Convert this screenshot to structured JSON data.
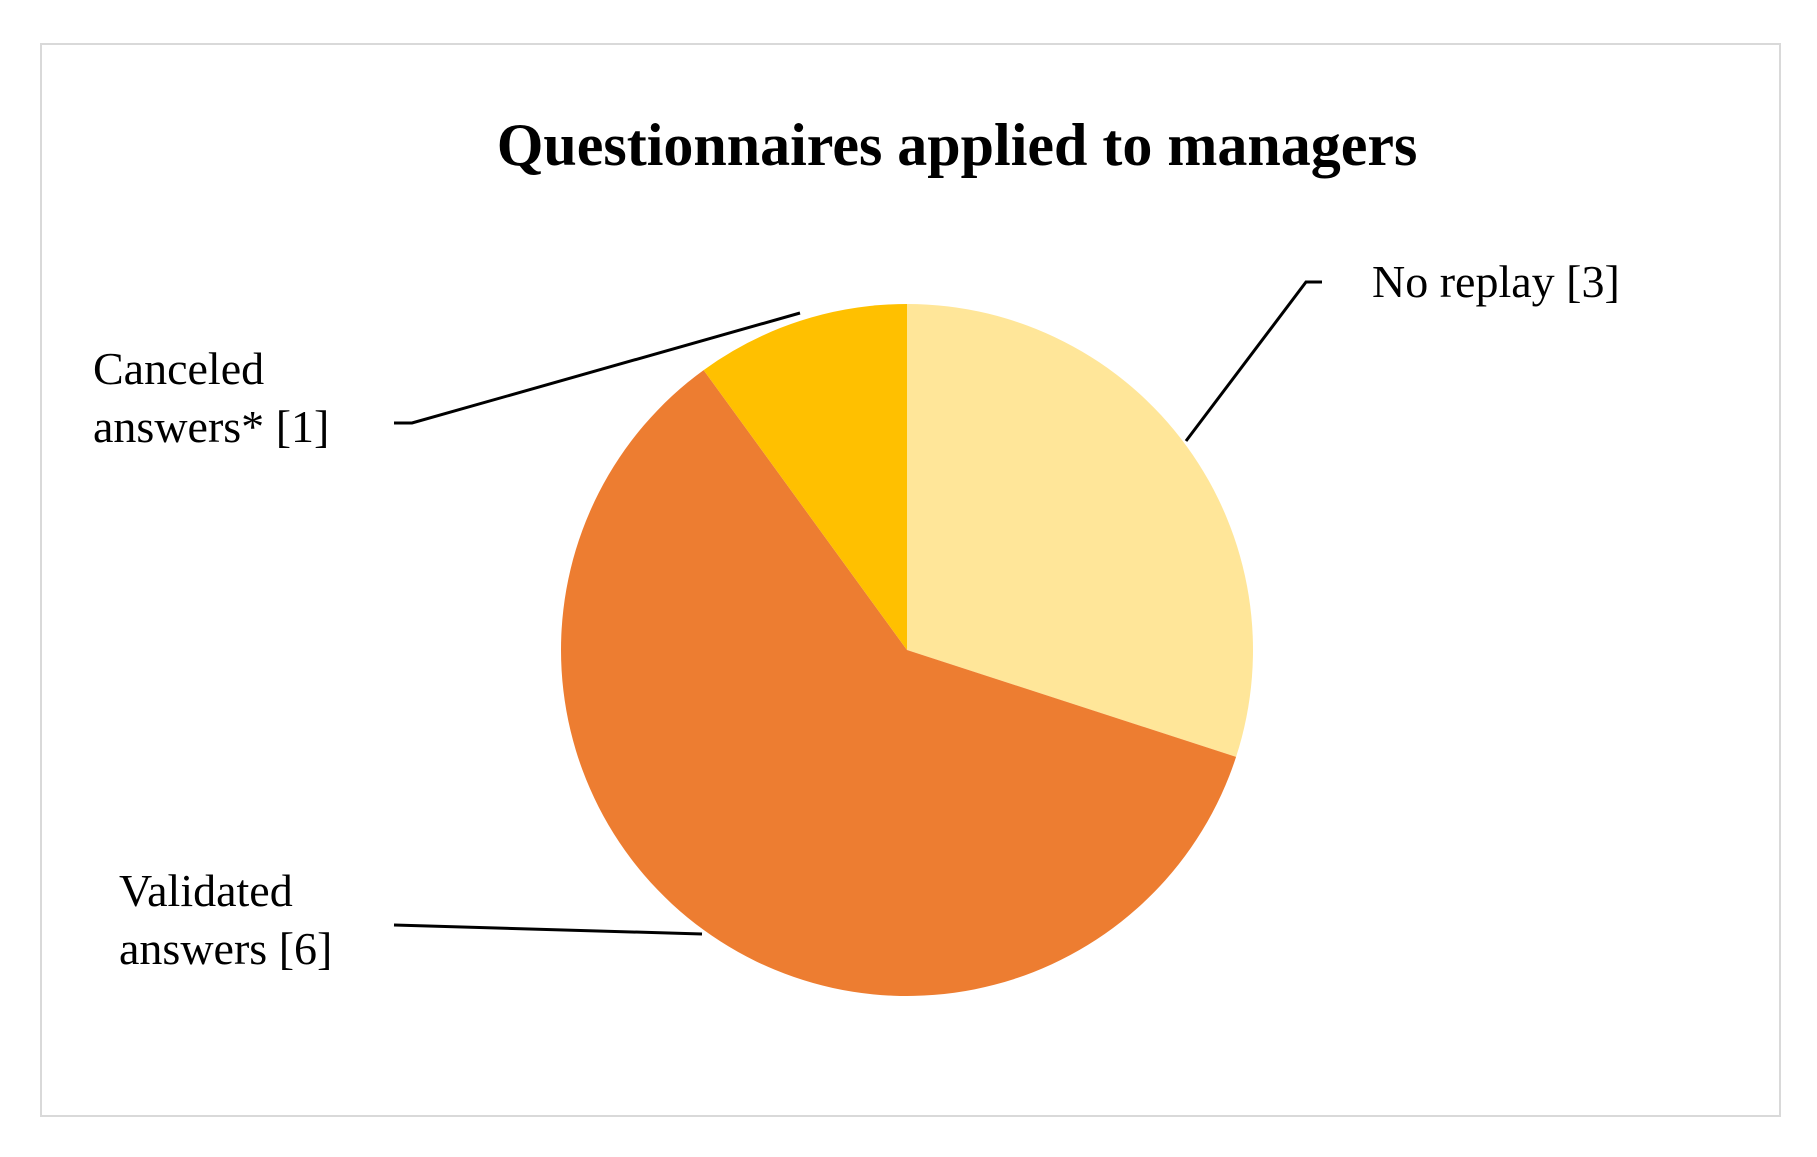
{
  "chart_data": {
    "type": "pie",
    "title": "Questionnaires applied to managers",
    "categories": [
      "No replay",
      "Validated answers",
      "Canceled answers*"
    ],
    "values": [
      3,
      6,
      1
    ],
    "value_labels": [
      "[3]",
      "[6]",
      "[1]"
    ],
    "colors": [
      "#FFE699",
      "#ED7D31",
      "#FFC000"
    ]
  }
}
